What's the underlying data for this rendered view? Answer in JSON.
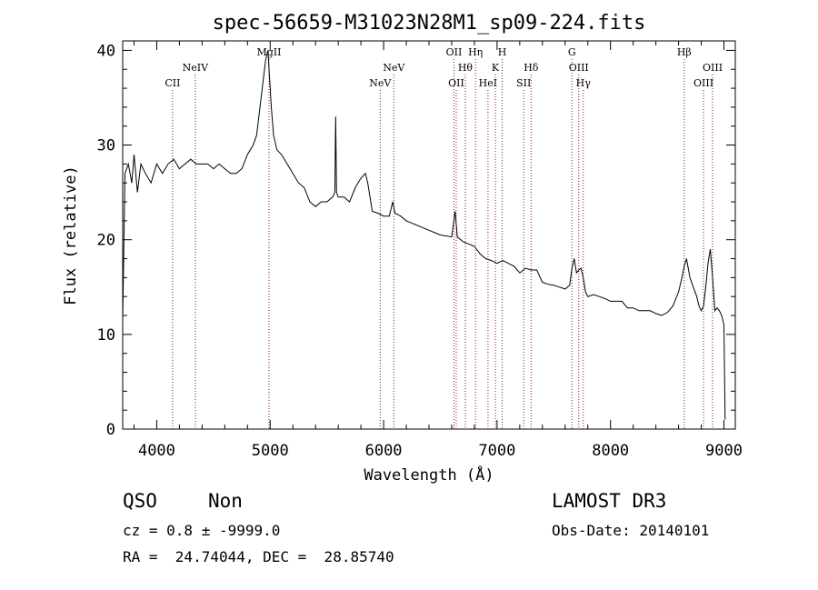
{
  "chart_data": {
    "type": "line",
    "title": "spec-56659-M31023N28M1_sp09-224.fits",
    "xlabel": "Wavelength (Å)",
    "ylabel": "Flux (relative)",
    "xlim": [
      3700,
      9100
    ],
    "ylim": [
      0,
      41
    ],
    "xticks": [
      4000,
      5000,
      6000,
      7000,
      8000,
      9000
    ],
    "yticks": [
      0,
      10,
      20,
      30,
      40
    ],
    "grid": false,
    "line_color": "#000000",
    "marker_color": "#8b1a1a",
    "spectrum": {
      "x": [
        3700,
        3720,
        3750,
        3780,
        3800,
        3830,
        3860,
        3900,
        3950,
        4000,
        4050,
        4100,
        4150,
        4200,
        4250,
        4300,
        4350,
        4400,
        4450,
        4500,
        4550,
        4600,
        4650,
        4700,
        4750,
        4800,
        4850,
        4880,
        4900,
        4920,
        4940,
        4960,
        4980,
        4990,
        5000,
        5010,
        5030,
        5060,
        5100,
        5150,
        5200,
        5250,
        5300,
        5350,
        5400,
        5450,
        5500,
        5550,
        5570,
        5577,
        5585,
        5600,
        5650,
        5700,
        5750,
        5800,
        5840,
        5860,
        5900,
        5950,
        6000,
        6050,
        6080,
        6100,
        6150,
        6200,
        6300,
        6400,
        6500,
        6600,
        6630,
        6650,
        6700,
        6800,
        6850,
        6900,
        6950,
        7000,
        7050,
        7100,
        7150,
        7200,
        7250,
        7300,
        7350,
        7400,
        7450,
        7500,
        7550,
        7600,
        7640,
        7660,
        7680,
        7700,
        7720,
        7740,
        7760,
        7780,
        7800,
        7850,
        7900,
        7950,
        8000,
        8050,
        8100,
        8150,
        8200,
        8250,
        8300,
        8350,
        8400,
        8450,
        8500,
        8550,
        8600,
        8630,
        8650,
        8670,
        8700,
        8730,
        8760,
        8780,
        8800,
        8820,
        8840,
        8860,
        8880,
        8900,
        8920,
        8940,
        8960,
        8980,
        9000,
        9010
      ],
      "y": [
        11.5,
        27,
        28,
        26,
        29,
        25,
        28,
        27,
        26,
        28,
        27,
        28,
        28.5,
        27.5,
        28,
        28.5,
        28,
        28,
        28,
        27.5,
        28,
        27.5,
        27,
        27,
        27.5,
        29,
        30,
        31,
        33,
        35,
        37,
        39,
        40,
        38,
        36,
        34,
        31,
        29.5,
        29,
        28,
        27,
        26,
        25.5,
        24,
        23.5,
        24,
        24,
        24.5,
        25,
        33,
        25,
        24.5,
        24.5,
        24,
        25.5,
        26.5,
        27,
        26,
        23,
        22.8,
        22.5,
        22.5,
        24,
        22.8,
        22.5,
        22,
        21.5,
        21,
        20.5,
        20.3,
        23,
        20.3,
        19.8,
        19.3,
        18.5,
        18,
        17.8,
        17.5,
        17.8,
        17.5,
        17.2,
        16.5,
        17,
        16.8,
        16.8,
        15.5,
        15.3,
        15.2,
        15,
        14.8,
        15.2,
        17,
        18,
        16.5,
        16.8,
        17,
        16,
        14.5,
        14,
        14.2,
        14,
        13.8,
        13.5,
        13.5,
        13.5,
        12.8,
        12.8,
        12.5,
        12.5,
        12.5,
        12.2,
        12,
        12.3,
        13,
        14.5,
        16,
        17.2,
        18,
        16,
        15,
        14,
        13,
        12.5,
        13,
        15,
        17.5,
        19,
        16,
        12.5,
        12.8,
        12.5,
        12,
        11,
        1
      ]
    },
    "lines": [
      {
        "label": "CII",
        "x": 4140,
        "row": 3
      },
      {
        "label": "NeIV",
        "x": 4340,
        "row": 2
      },
      {
        "label": "MgII",
        "x": 4990,
        "row": 1
      },
      {
        "label": "NeV",
        "x": 5970,
        "row": 3
      },
      {
        "label": "NeV",
        "x": 6090,
        "row": 2
      },
      {
        "label": "OII",
        "x": 6620,
        "row": 1
      },
      {
        "label": "OII",
        "x": 6640,
        "row": 3
      },
      {
        "label": "Hθ",
        "x": 6720,
        "row": 2
      },
      {
        "label": "Hη",
        "x": 6810,
        "row": 1
      },
      {
        "label": "HeI",
        "x": 6920,
        "row": 3
      },
      {
        "label": "K",
        "x": 6985,
        "row": 2
      },
      {
        "label": "H",
        "x": 7045,
        "row": 1
      },
      {
        "label": "SII",
        "x": 7235,
        "row": 3
      },
      {
        "label": "Hδ",
        "x": 7300,
        "row": 2
      },
      {
        "label": "G",
        "x": 7660,
        "row": 1
      },
      {
        "label": "OIII",
        "x": 7720,
        "row": 2
      },
      {
        "label": "Hγ",
        "x": 7760,
        "row": 3
      },
      {
        "label": "Hβ",
        "x": 8650,
        "row": 1
      },
      {
        "label": "OIII",
        "x": 8820,
        "row": 3
      },
      {
        "label": "OIII",
        "x": 8900,
        "row": 2
      }
    ]
  },
  "info": {
    "object_class": "QSO",
    "subclass": "Non",
    "survey": "LAMOST DR3",
    "cz": "cz = 0.8 ± -9999.0",
    "obs_date": "Obs-Date: 20140101",
    "coords": "RA =  24.74044, DEC =  28.85740"
  }
}
